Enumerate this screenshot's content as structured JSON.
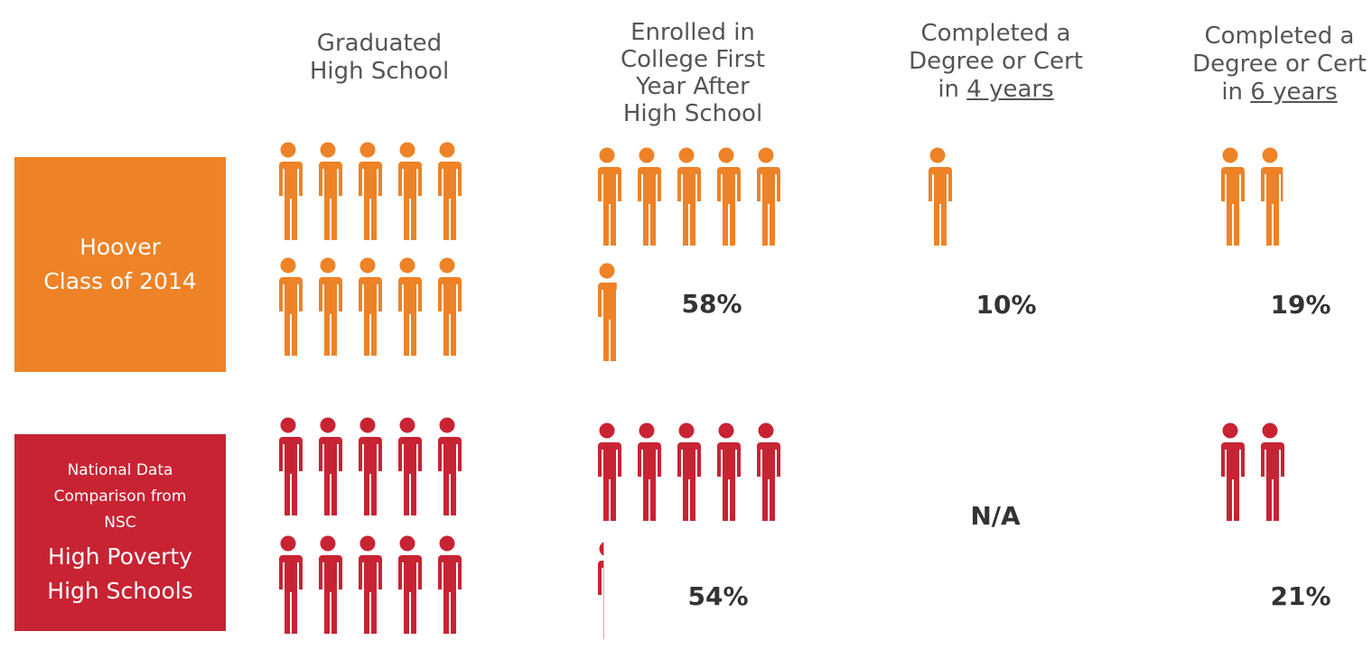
{
  "columns": [
    {
      "id": "graduated",
      "lines": [
        "Graduated",
        "High School"
      ]
    },
    {
      "id": "enrolled",
      "lines": [
        "Enrolled in",
        "College First",
        "Year After",
        "High School"
      ]
    },
    {
      "id": "four_year",
      "lines": [
        "Completed a",
        "Degree or Cert"
      ],
      "prefix": "in ",
      "underlined": "4 years"
    },
    {
      "id": "six_year",
      "lines": [
        "Completed a",
        "Degree or Cert"
      ],
      "prefix": "in ",
      "underlined": "6 years"
    }
  ],
  "rows": [
    {
      "id": "hoover",
      "color": "#ee8227",
      "lines": [
        "Hoover",
        "Class of 2014"
      ],
      "small_lines": []
    },
    {
      "id": "national",
      "color": "#c82333",
      "lines": [
        "High Poverty",
        "High Schools"
      ],
      "small_lines": [
        "National Data",
        "Comparison from",
        "NSC"
      ]
    }
  ],
  "chart_data": {
    "type": "pictograph",
    "unit": "each figure represents 10% of high school graduates",
    "categories": [
      "Graduated High School",
      "Enrolled in College First Year After High School",
      "Completed a Degree or Cert in 4 years",
      "Completed a Degree or Cert in 6 years"
    ],
    "series": [
      {
        "name": "Hoover Class of 2014",
        "color": "#ee8227",
        "values": [
          100,
          58,
          10,
          19
        ],
        "labels": [
          "",
          "58%",
          "10%",
          "19%"
        ]
      },
      {
        "name": "National Data Comparison from NSC High Poverty High Schools",
        "color": "#c82333",
        "values": [
          100,
          54,
          null,
          21
        ],
        "labels": [
          "",
          "54%",
          "N/A",
          "21%"
        ]
      }
    ]
  }
}
